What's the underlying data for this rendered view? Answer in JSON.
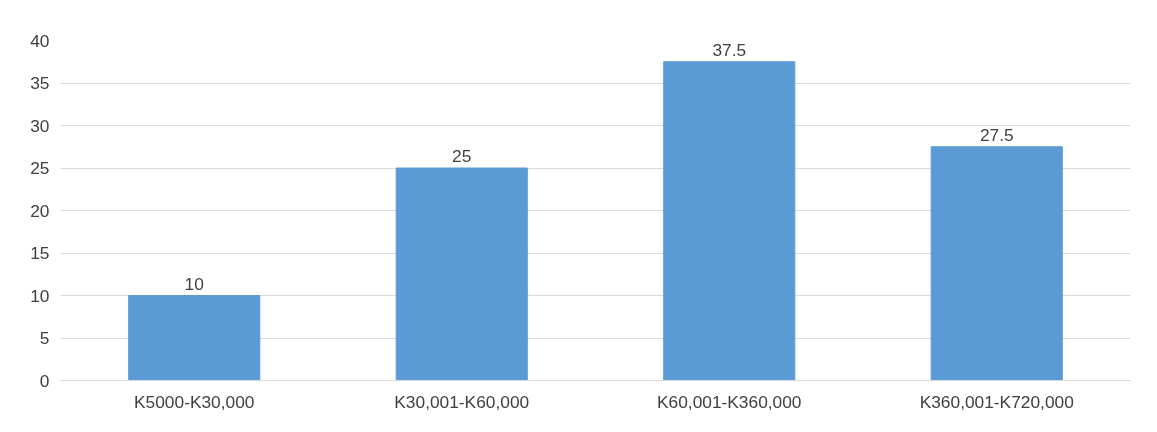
{
  "chart_data": {
    "type": "bar",
    "categories": [
      "K5000-K30,000",
      "K30,001-K60,000",
      "K60,001-K360,000",
      "K360,001-K720,000"
    ],
    "values": [
      10,
      25,
      37.5,
      27.5
    ],
    "color": "#5b9bd5",
    "ylim": [
      0,
      40
    ],
    "yticks": [
      0,
      5,
      10,
      15,
      20,
      25,
      30,
      35,
      40
    ],
    "grid": "y",
    "data_labels": true
  }
}
